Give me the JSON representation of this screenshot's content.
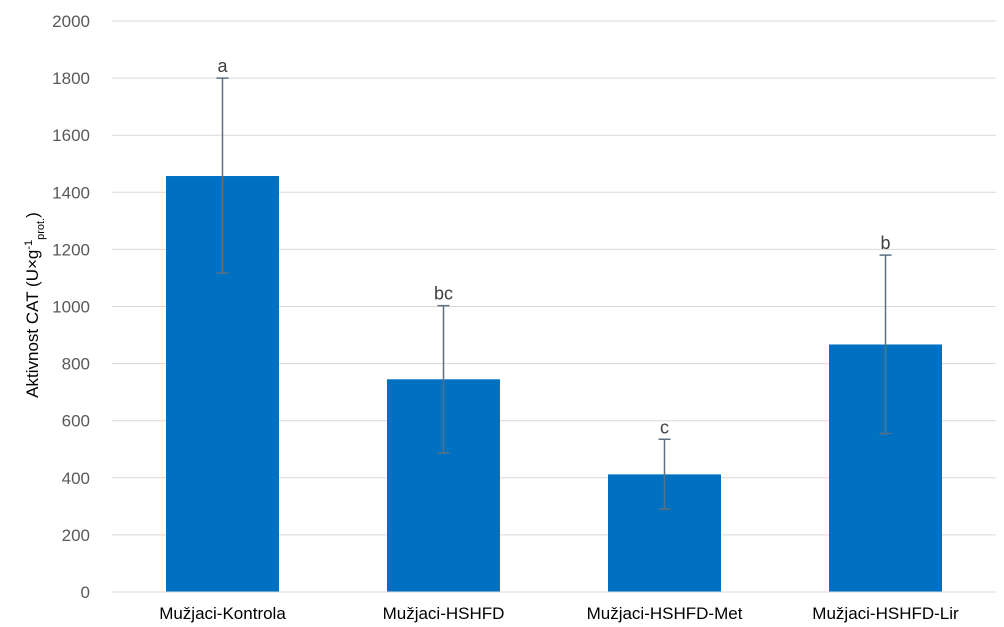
{
  "chart_data": {
    "type": "bar",
    "categories": [
      "Mužjaci-Kontrola",
      "Mužjaci-HSHFD",
      "Mužjaci-HSHFD-Met",
      "Mužjaci-HSHFD-Lir"
    ],
    "values": [
      1457,
      745,
      412,
      867
    ],
    "error_low": [
      1117,
      487,
      290,
      555
    ],
    "error_high": [
      1800,
      1003,
      535,
      1180
    ],
    "significance_labels": [
      "a",
      "bc",
      "c",
      "b"
    ],
    "ylim": [
      0,
      2000
    ],
    "yticks": [
      0,
      200,
      400,
      600,
      800,
      1000,
      1200,
      1400,
      1600,
      1800,
      2000
    ],
    "ylabel": {
      "main": "Aktivnost CAT (U×g",
      "sup": "-1",
      "sub": "prot.",
      "close": ")"
    },
    "grid": true,
    "colors": {
      "bar": "#0070C0",
      "error_bar": "#5B7183",
      "grid": "#D9D9D9"
    }
  }
}
